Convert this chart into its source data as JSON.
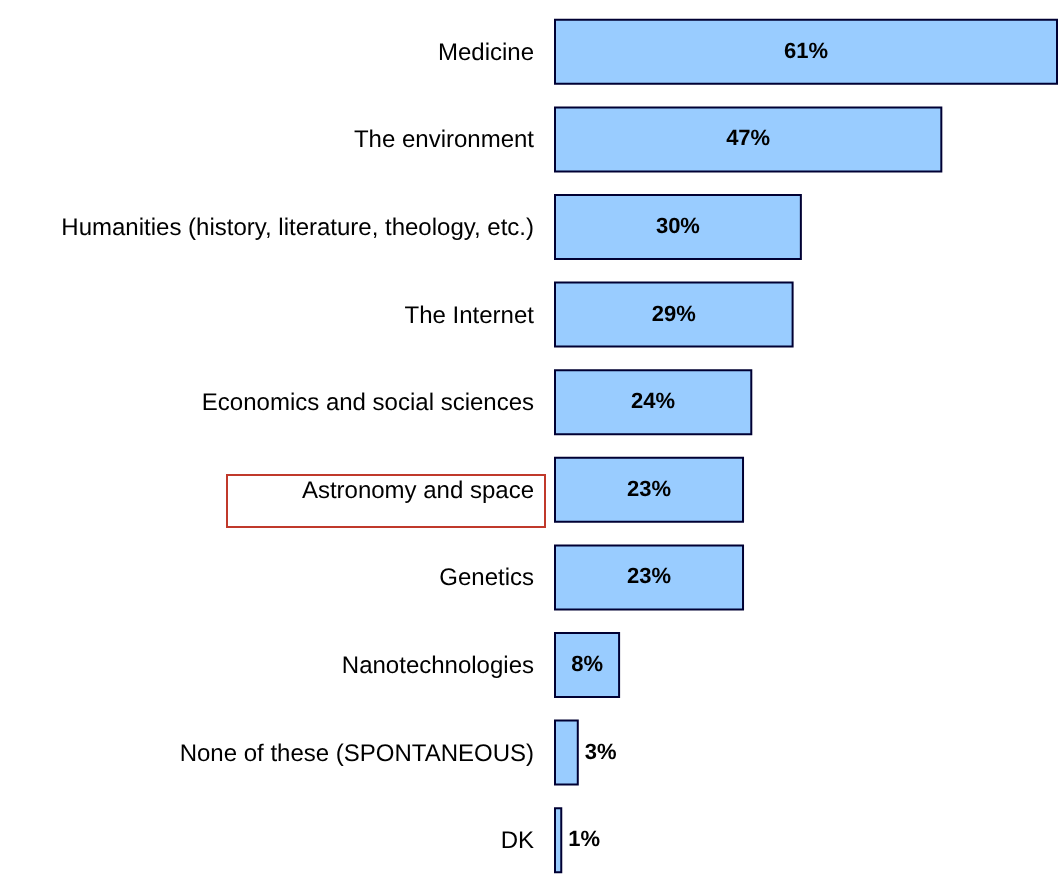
{
  "chart_data": {
    "type": "bar",
    "orientation": "horizontal",
    "categories": [
      "Medicine",
      "The environment",
      "Humanities (history, literature, theology, etc.)",
      "The Internet",
      "Economics and social sciences",
      "Astronomy and space",
      "Genetics",
      "Nanotechnologies",
      "None of these (SPONTANEOUS)",
      "DK"
    ],
    "values": [
      61,
      47,
      30,
      29,
      24,
      23,
      23,
      8,
      3,
      1
    ],
    "value_labels": [
      "61%",
      "47%",
      "30%",
      "29%",
      "24%",
      "23%",
      "23%",
      "8%",
      "3%",
      "1%"
    ],
    "color": "#99ccff"
  }
}
